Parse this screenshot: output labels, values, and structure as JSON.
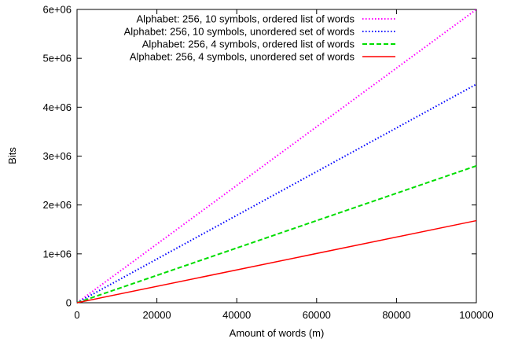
{
  "chart_data": {
    "type": "line",
    "title": "",
    "xlabel": "Amount of words (m)",
    "ylabel": "Bits",
    "xlim": [
      0,
      100000
    ],
    "ylim": [
      0,
      6000000
    ],
    "x_ticks": [
      0,
      20000,
      40000,
      60000,
      80000,
      100000
    ],
    "x_tick_labels": [
      "0",
      "20000",
      "40000",
      "60000",
      "80000",
      "100000"
    ],
    "y_ticks": [
      0,
      1000000,
      2000000,
      3000000,
      4000000,
      5000000,
      6000000
    ],
    "y_tick_labels": [
      "0",
      "1e+06",
      "2e+06",
      "3e+06",
      "4e+06",
      "5e+06",
      "6e+06"
    ],
    "grid": false,
    "legend_position": "top-left",
    "x": [
      0,
      100000
    ],
    "series": [
      {
        "name": "Alphabet: 256, 10 symbols, ordered list of words",
        "values": [
          0,
          6000000
        ],
        "color": "#ff00ff",
        "dash": "dotted"
      },
      {
        "name": "Alphabet: 256, 10 symbols, unordered set of words",
        "values": [
          0,
          4470000
        ],
        "color": "#0000ff",
        "dash": "dotted"
      },
      {
        "name": "Alphabet: 256, 4 symbols, ordered list of words",
        "values": [
          0,
          2800000
        ],
        "color": "#00dd00",
        "dash": "dashed"
      },
      {
        "name": "Alphabet: 256, 4 symbols, unordered set of words",
        "values": [
          0,
          1680000
        ],
        "color": "#ff0000",
        "dash": "solid"
      }
    ]
  }
}
